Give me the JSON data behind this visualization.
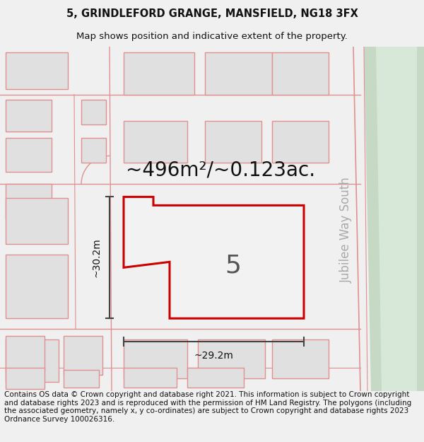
{
  "title_line1": "5, GRINDLEFORD GRANGE, MANSFIELD, NG18 3FX",
  "title_line2": "Map shows position and indicative extent of the property.",
  "area_text": "~496m²/~0.123ac.",
  "label_number": "5",
  "dim_vertical": "~30.2m",
  "dim_horizontal": "~29.2m",
  "road_label": "Jubilee Way South",
  "footer_text": "Contains OS data © Crown copyright and database right 2021. This information is subject to Crown copyright and database rights 2023 and is reproduced with the permission of HM Land Registry. The polygons (including the associated geometry, namely x, y co-ordinates) are subject to Crown copyright and database rights 2023 Ordnance Survey 100026316.",
  "bg_color": "#f0f0f0",
  "map_bg": "#ffffff",
  "plot_outline_color": "#cc0000",
  "building_fill_color": "#e0e0e0",
  "building_outline_color": "#e09090",
  "road_line_color": "#e09090",
  "road_fill_color": "#c5d9c5",
  "dim_line_color": "#444444",
  "title_fontsize": 10.5,
  "subtitle_fontsize": 9.5,
  "area_fontsize": 20,
  "label_fontsize": 26,
  "dim_fontsize": 10,
  "road_label_fontsize": 12,
  "footer_fontsize": 7.5
}
